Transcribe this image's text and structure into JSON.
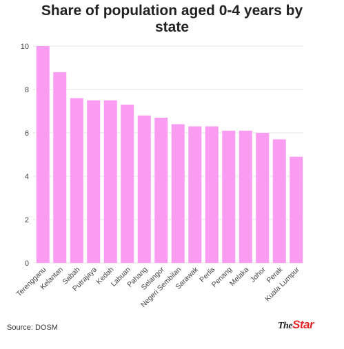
{
  "chart_data": {
    "type": "bar",
    "title_line1": "Share of population aged 0-4 years by",
    "title_line2": "state",
    "categories": [
      "Terengganu",
      "Kelantan",
      "Sabah",
      "Putrajaya",
      "Kedah",
      "Labuan",
      "Pahang",
      "Selangor",
      "Negeri Sembilan",
      "Sarawak",
      "Perlis",
      "Penang",
      "Melaka",
      "Johor",
      "Perak",
      "Kuala Lumpur"
    ],
    "values": [
      10.0,
      8.8,
      7.6,
      7.5,
      7.5,
      7.3,
      6.8,
      6.7,
      6.4,
      6.3,
      6.3,
      6.1,
      6.1,
      6.0,
      5.7,
      4.9
    ],
    "ylim": [
      0,
      10
    ],
    "yticks": [
      "0",
      "2",
      "4",
      "6",
      "8",
      "10"
    ],
    "grid": true,
    "bar_color": "#fa9cf2"
  },
  "footer": {
    "source": "Source: DOSM",
    "logo_the": "The",
    "logo_star": "Star"
  }
}
